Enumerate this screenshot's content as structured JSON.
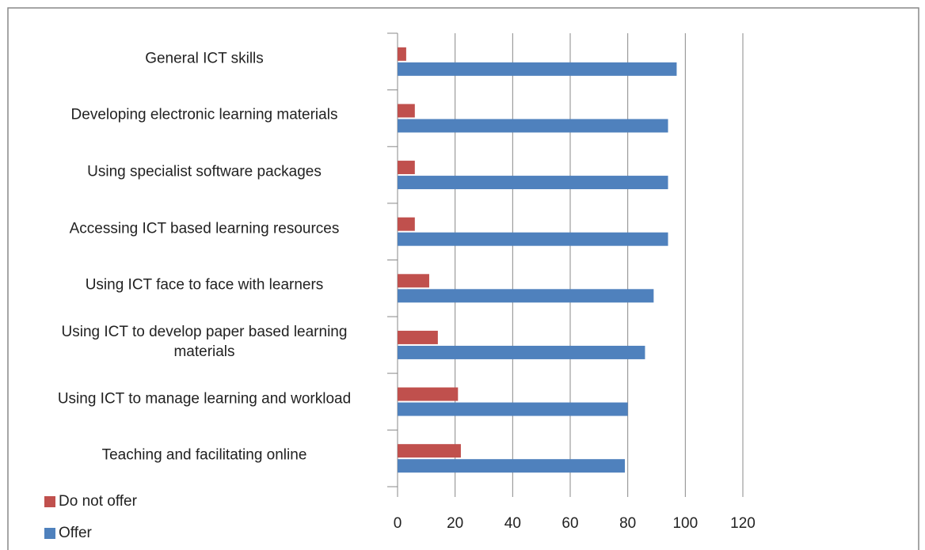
{
  "chart_data": {
    "type": "hbar",
    "categories": [
      "General ICT skills",
      "Developing electronic learning materials",
      "Using specialist software packages",
      "Accessing ICT based learning resources",
      "Using ICT face to face with learners",
      "Using ICT to develop paper based learning materials",
      "Using ICT to manage learning and workload",
      "Teaching and facilitating online"
    ],
    "series": [
      {
        "name": "Do not offer",
        "color": "#c0504d",
        "values": [
          3,
          6,
          6,
          6,
          11,
          14,
          21,
          22
        ]
      },
      {
        "name": "Offer",
        "color": "#4f81bd",
        "values": [
          97,
          94,
          94,
          94,
          89,
          86,
          80,
          79
        ]
      }
    ],
    "xlim": [
      0,
      120
    ],
    "xticks": [
      0,
      20,
      40,
      60,
      80,
      100,
      120
    ],
    "grid": true,
    "legend": "bottom-left"
  }
}
